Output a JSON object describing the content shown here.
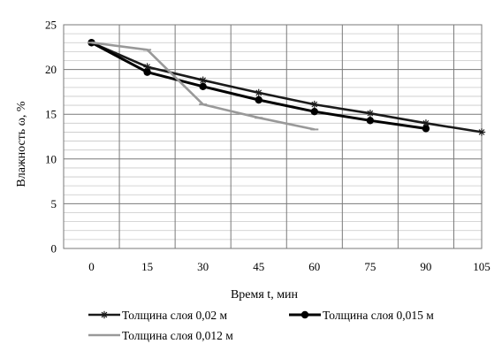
{
  "chart_data": {
    "type": "line",
    "title": "",
    "xlabel": "Время t, мин",
    "ylabel": "Влажность ω, %",
    "x": [
      0,
      15,
      30,
      45,
      60,
      75,
      90,
      105
    ],
    "xticks": [
      "0",
      "15",
      "30",
      "45",
      "60",
      "75",
      "90",
      "105"
    ],
    "ylim": [
      0,
      25
    ],
    "yticks": [
      "0",
      "5",
      "10",
      "15",
      "20",
      "25"
    ],
    "grid": true,
    "legend_position": "bottom",
    "series": [
      {
        "name": "Толщина слоя 0,02 м",
        "color": "#1a1a1a",
        "marker": "asterisk",
        "x": [
          0,
          15,
          30,
          45,
          60,
          75,
          90,
          105
        ],
        "values": [
          23.0,
          20.3,
          18.8,
          17.4,
          16.1,
          15.1,
          14.0,
          13.0
        ]
      },
      {
        "name": "Толщина слоя 0,015 м",
        "color": "#000000",
        "marker": "circle",
        "x": [
          0,
          15,
          30,
          45,
          60,
          75,
          90
        ],
        "values": [
          23.0,
          19.7,
          18.1,
          16.6,
          15.3,
          14.3,
          13.4
        ]
      },
      {
        "name": "Толщина слоя 0,012 м",
        "color": "#999999",
        "marker": "dash",
        "x": [
          0,
          15,
          30,
          45,
          60
        ],
        "values": [
          23.0,
          22.2,
          16.1,
          14.6,
          13.3
        ]
      }
    ]
  }
}
